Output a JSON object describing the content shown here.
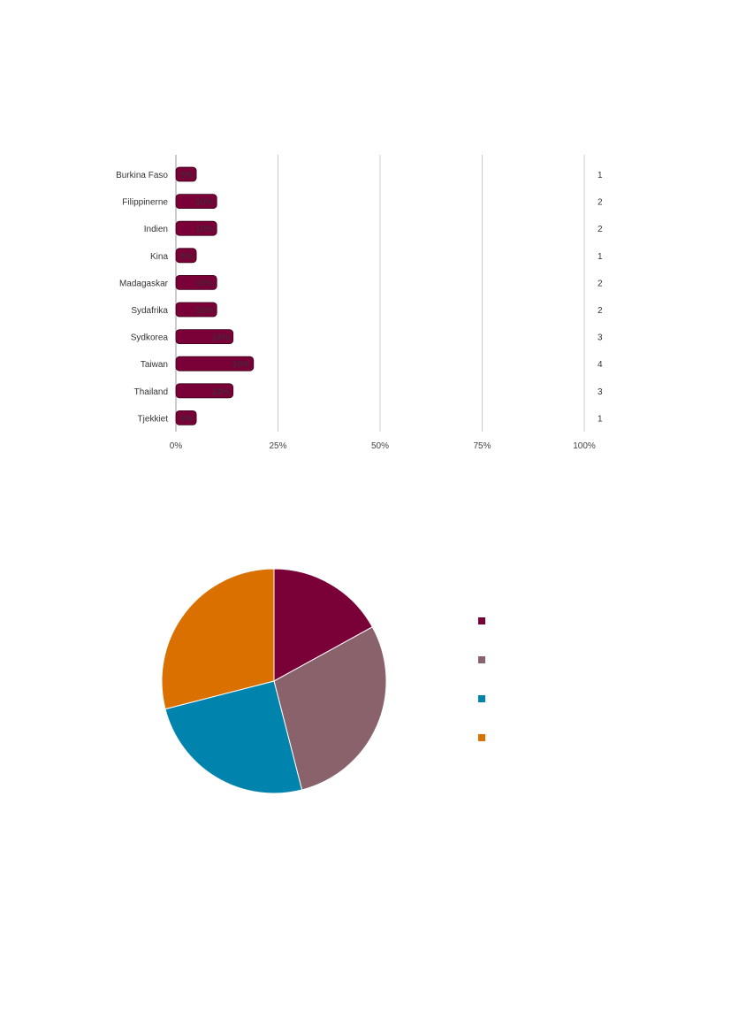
{
  "chart_data": [
    {
      "type": "bar",
      "orientation": "horizontal",
      "categories": [
        "Burkina Faso",
        "Filippinerne",
        "Indien",
        "Kina",
        "Madagaskar",
        "Sydafrika",
        "Sydkorea",
        "Taiwan",
        "Thailand",
        "Tjekkiet"
      ],
      "values": [
        5,
        10,
        10,
        5,
        10,
        10,
        14,
        19,
        14,
        5
      ],
      "data_labels": [
        "5%",
        "10%",
        "10%",
        "5%",
        "10%",
        "10%",
        "14%",
        "19%",
        "14%",
        "5%"
      ],
      "counts": [
        "1",
        "2",
        "2",
        "1",
        "2",
        "2",
        "3",
        "4",
        "3",
        "1"
      ],
      "x_ticks": [
        "0%",
        "25%",
        "50%",
        "75%",
        "100%"
      ],
      "xlim": [
        0,
        100
      ],
      "grid": "vertical",
      "color": "#7a0038"
    },
    {
      "type": "pie",
      "values": [
        17,
        29,
        25,
        29
      ],
      "colors": [
        "#7a0038",
        "#8a626b",
        "#0084ad",
        "#d97000"
      ],
      "legend": "right"
    }
  ]
}
